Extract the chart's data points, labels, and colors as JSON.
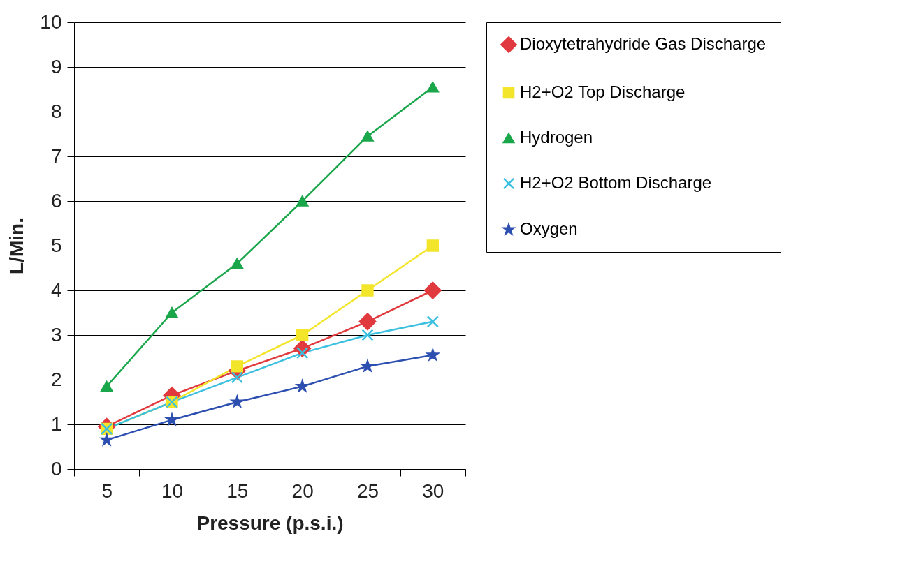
{
  "chart_data": {
    "type": "line",
    "xlabel": "Pressure (p.s.i.)",
    "ylabel": "L/Min.",
    "categories": [
      "5",
      "10",
      "15",
      "20",
      "25",
      "30"
    ],
    "ylim": [
      0,
      10
    ],
    "yticks": [
      0,
      1,
      2,
      3,
      4,
      5,
      6,
      7,
      8,
      9,
      10
    ],
    "grid": "y",
    "legend": "right",
    "series": [
      {
        "name": "Dioxytetrahydride Gas Discharge",
        "color": "#e0393e",
        "marker": "diamond",
        "values": [
          0.95,
          1.65,
          2.2,
          2.7,
          3.3,
          4.0
        ]
      },
      {
        "name": "H2+O2 Top Discharge",
        "color": "#f2e52a",
        "marker": "square",
        "values": [
          0.9,
          1.5,
          2.3,
          3.0,
          4.0,
          5.0
        ]
      },
      {
        "name": "Hydrogen",
        "color": "#1aa64a",
        "marker": "triangle",
        "values": [
          1.85,
          3.5,
          4.6,
          6.0,
          7.45,
          8.55
        ]
      },
      {
        "name": "H2+O2 Bottom Discharge",
        "color": "#3cc0e0",
        "marker": "cross",
        "values": [
          0.9,
          1.5,
          2.05,
          2.6,
          3.0,
          3.3
        ]
      },
      {
        "name": "Oxygen",
        "color": "#2d4fb0",
        "marker": "star",
        "values": [
          0.65,
          1.1,
          1.5,
          1.85,
          2.3,
          2.55
        ]
      }
    ]
  }
}
